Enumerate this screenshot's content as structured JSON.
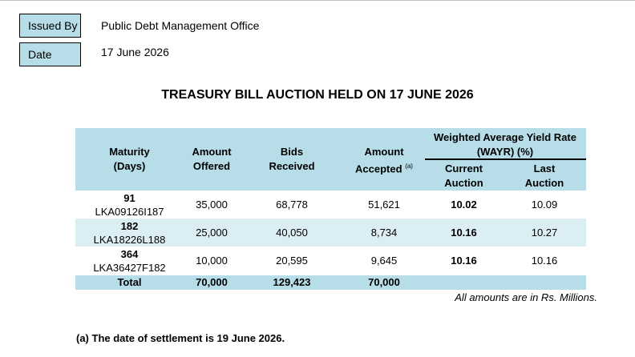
{
  "issued_by": {
    "label": "Issued By",
    "value": "Public Debt Management Office"
  },
  "date": {
    "label": "Date",
    "value": "17 June 2026"
  },
  "title": "TREASURY BILL AUCTION HELD ON 17 JUNE 2026",
  "headers": {
    "maturity_1": "Maturity",
    "maturity_2": "(Days)",
    "offered_1": "Amount",
    "offered_2": "Offered",
    "bids_1": "Bids",
    "bids_2": "Received",
    "accepted_1": "Amount",
    "accepted_2": "Accepted",
    "accepted_sup": "(a)",
    "wayr_1": "Weighted Average Yield Rate",
    "wayr_2": "(WAYR) (%)",
    "current_1": "Current",
    "current_2": "Auction",
    "last_1": "Last",
    "last_2": "Auction"
  },
  "rows": [
    {
      "days": "91",
      "isin": "LKA09126I187",
      "offered": "35,000",
      "bids": "68,778",
      "accepted": "51,621",
      "current": "10.02",
      "last": "10.09"
    },
    {
      "days": "182",
      "isin": "LKA18226L188",
      "offered": "25,000",
      "bids": "40,050",
      "accepted": "8,734",
      "current": "10.16",
      "last": "10.27"
    },
    {
      "days": "364",
      "isin": "LKA36427F182",
      "offered": "10,000",
      "bids": "20,595",
      "accepted": "9,645",
      "current": "10.16",
      "last": "10.16"
    }
  ],
  "total": {
    "label": "Total",
    "offered": "70,000",
    "bids": "129,423",
    "accepted": "70,000"
  },
  "units_note": "All amounts are in Rs. Millions.",
  "footnote": "(a) The date of settlement is 19 June 2026.",
  "colors": {
    "label_box": "#b7dde8",
    "header_band": "#b7dde8",
    "alt_row": "#dbeef3",
    "total_band": "#b7dde8"
  }
}
